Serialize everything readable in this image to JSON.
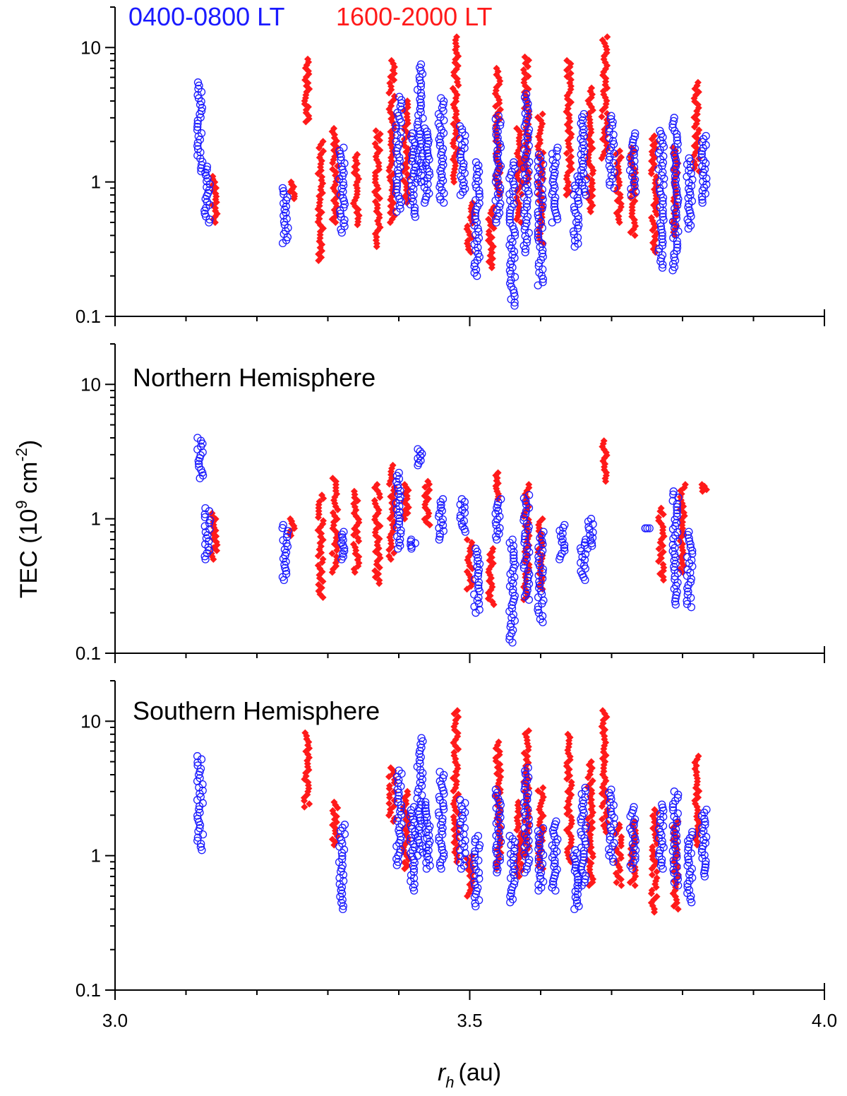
{
  "colors": {
    "morning": "#1a1aff",
    "evening": "#ff1a1a",
    "axis": "#000000"
  },
  "chart_data": {
    "type": "scatter",
    "legend": [
      {
        "label": "0400-0800 LT",
        "color": "#1a1aff",
        "marker": "open-circle"
      },
      {
        "label": "1600-2000 LT",
        "color": "#ff1a1a",
        "marker": "filled-diamond"
      }
    ],
    "xlabel": "r",
    "xlabel_sub": "h",
    "xlabel_unit": "(au)",
    "ylabel_main": "TEC (10",
    "ylabel_exp1": "9",
    "ylabel_mid": " cm",
    "ylabel_exp2": "-2",
    "ylabel_end": ")",
    "xlim": [
      3.0,
      4.0
    ],
    "ylim": [
      0.1,
      20
    ],
    "yscale": "log",
    "x_ticks": [
      "3.0",
      "3.5",
      "4.0"
    ],
    "y_ticks": [
      "0.1",
      "1",
      "10"
    ],
    "panels": [
      {
        "id": "all",
        "label": "",
        "morning_groups": [
          [
            3.12,
            1.2,
            5.5
          ],
          [
            3.13,
            0.5,
            1.3
          ],
          [
            3.24,
            0.35,
            0.9
          ],
          [
            3.32,
            0.42,
            1.8
          ],
          [
            3.4,
            0.6,
            4.3
          ],
          [
            3.42,
            0.55,
            2.3
          ],
          [
            3.43,
            1.0,
            7.5
          ],
          [
            3.44,
            0.7,
            2.5
          ],
          [
            3.46,
            0.7,
            4.2
          ],
          [
            3.49,
            0.8,
            2.6
          ],
          [
            3.51,
            0.2,
            1.4
          ],
          [
            3.54,
            0.5,
            3.1
          ],
          [
            3.56,
            0.12,
            1.4
          ],
          [
            3.58,
            0.3,
            4.5
          ],
          [
            3.6,
            0.17,
            1.6
          ],
          [
            3.62,
            0.5,
            1.8
          ],
          [
            3.65,
            0.33,
            1.1
          ],
          [
            3.66,
            0.8,
            3.2
          ],
          [
            3.7,
            0.9,
            3.1
          ],
          [
            3.73,
            0.8,
            2.3
          ],
          [
            3.77,
            0.23,
            2.4
          ],
          [
            3.79,
            0.22,
            3.0
          ],
          [
            3.81,
            0.45,
            1.5
          ],
          [
            3.83,
            0.7,
            2.2
          ]
        ],
        "evening_groups": [
          [
            3.14,
            0.5,
            1.1
          ],
          [
            3.25,
            0.75,
            1.0
          ],
          [
            3.27,
            2.8,
            8.2
          ],
          [
            3.29,
            0.26,
            2.0
          ],
          [
            3.31,
            0.5,
            2.5
          ],
          [
            3.34,
            0.48,
            1.6
          ],
          [
            3.37,
            0.33,
            2.4
          ],
          [
            3.39,
            0.5,
            8.0
          ],
          [
            3.41,
            0.7,
            4.0
          ],
          [
            3.48,
            1.0,
            12.0
          ],
          [
            3.5,
            0.3,
            0.7
          ],
          [
            3.53,
            0.23,
            0.65
          ],
          [
            3.54,
            0.8,
            7.0
          ],
          [
            3.57,
            0.5,
            2.5
          ],
          [
            3.58,
            1.0,
            8.5
          ],
          [
            3.6,
            0.35,
            3.2
          ],
          [
            3.64,
            0.8,
            8.0
          ],
          [
            3.67,
            0.6,
            5.0
          ],
          [
            3.69,
            1.5,
            12.0
          ],
          [
            3.71,
            0.5,
            1.7
          ],
          [
            3.73,
            0.4,
            1.8
          ],
          [
            3.76,
            0.3,
            2.2
          ],
          [
            3.79,
            0.4,
            1.8
          ],
          [
            3.82,
            1.2,
            5.5
          ]
        ]
      },
      {
        "id": "north",
        "label": "Northern Hemisphere",
        "morning_groups": [
          [
            3.12,
            2.0,
            4.0
          ],
          [
            3.13,
            0.5,
            1.2
          ],
          [
            3.24,
            0.35,
            0.9
          ],
          [
            3.32,
            0.5,
            0.8
          ],
          [
            3.4,
            0.6,
            2.2
          ],
          [
            3.42,
            0.6,
            0.7
          ],
          [
            3.43,
            2.5,
            3.3
          ],
          [
            3.46,
            0.7,
            1.4
          ],
          [
            3.49,
            0.8,
            1.4
          ],
          [
            3.51,
            0.2,
            0.6
          ],
          [
            3.54,
            0.7,
            1.4
          ],
          [
            3.56,
            0.12,
            0.7
          ],
          [
            3.58,
            0.25,
            1.5
          ],
          [
            3.6,
            0.17,
            0.8
          ],
          [
            3.63,
            0.5,
            0.9
          ],
          [
            3.66,
            0.35,
            0.7
          ],
          [
            3.67,
            0.6,
            1.0
          ],
          [
            3.75,
            0.85,
            0.85
          ],
          [
            3.79,
            0.23,
            1.6
          ],
          [
            3.81,
            0.22,
            0.8
          ]
        ],
        "evening_groups": [
          [
            3.14,
            0.5,
            1.1
          ],
          [
            3.25,
            0.75,
            1.0
          ],
          [
            3.29,
            0.26,
            1.5
          ],
          [
            3.31,
            0.4,
            2.0
          ],
          [
            3.34,
            0.4,
            1.6
          ],
          [
            3.37,
            0.33,
            1.8
          ],
          [
            3.39,
            0.5,
            2.5
          ],
          [
            3.41,
            1.0,
            1.8
          ],
          [
            3.44,
            0.9,
            1.9
          ],
          [
            3.5,
            0.3,
            0.7
          ],
          [
            3.53,
            0.23,
            0.6
          ],
          [
            3.54,
            1.4,
            2.2
          ],
          [
            3.58,
            0.25,
            1.8
          ],
          [
            3.6,
            0.3,
            1.0
          ],
          [
            3.69,
            1.9,
            3.8
          ],
          [
            3.77,
            0.35,
            1.2
          ],
          [
            3.8,
            0.4,
            1.8
          ],
          [
            3.83,
            1.6,
            1.8
          ]
        ]
      },
      {
        "id": "south",
        "label": "Southern Hemisphere",
        "morning_groups": [
          [
            3.12,
            1.1,
            5.5
          ],
          [
            3.32,
            0.4,
            1.7
          ],
          [
            3.4,
            0.85,
            4.3
          ],
          [
            3.42,
            0.55,
            2.3
          ],
          [
            3.43,
            1.0,
            7.5
          ],
          [
            3.44,
            0.8,
            2.5
          ],
          [
            3.46,
            0.8,
            4.2
          ],
          [
            3.49,
            0.8,
            2.6
          ],
          [
            3.51,
            0.42,
            1.4
          ],
          [
            3.54,
            0.75,
            3.1
          ],
          [
            3.56,
            0.45,
            1.4
          ],
          [
            3.58,
            0.75,
            4.5
          ],
          [
            3.6,
            0.55,
            1.6
          ],
          [
            3.62,
            0.55,
            1.8
          ],
          [
            3.65,
            0.4,
            1.1
          ],
          [
            3.66,
            0.6,
            3.2
          ],
          [
            3.7,
            0.9,
            3.1
          ],
          [
            3.73,
            0.8,
            2.3
          ],
          [
            3.77,
            0.8,
            2.4
          ],
          [
            3.79,
            0.6,
            3.0
          ],
          [
            3.81,
            0.45,
            1.5
          ],
          [
            3.83,
            0.7,
            2.2
          ]
        ],
        "evening_groups": [
          [
            3.27,
            2.3,
            8.2
          ],
          [
            3.31,
            1.2,
            2.5
          ],
          [
            3.39,
            1.8,
            4.5
          ],
          [
            3.41,
            0.8,
            3.0
          ],
          [
            3.48,
            0.9,
            12.0
          ],
          [
            3.5,
            0.5,
            1.0
          ],
          [
            3.54,
            0.8,
            7.0
          ],
          [
            3.57,
            0.7,
            2.5
          ],
          [
            3.58,
            1.0,
            8.5
          ],
          [
            3.6,
            0.8,
            3.2
          ],
          [
            3.64,
            0.9,
            8.0
          ],
          [
            3.67,
            0.6,
            5.0
          ],
          [
            3.69,
            1.5,
            12.0
          ],
          [
            3.71,
            0.6,
            1.7
          ],
          [
            3.73,
            0.6,
            1.8
          ],
          [
            3.76,
            0.38,
            2.2
          ],
          [
            3.79,
            0.4,
            1.8
          ],
          [
            3.82,
            1.2,
            5.5
          ]
        ]
      }
    ]
  }
}
